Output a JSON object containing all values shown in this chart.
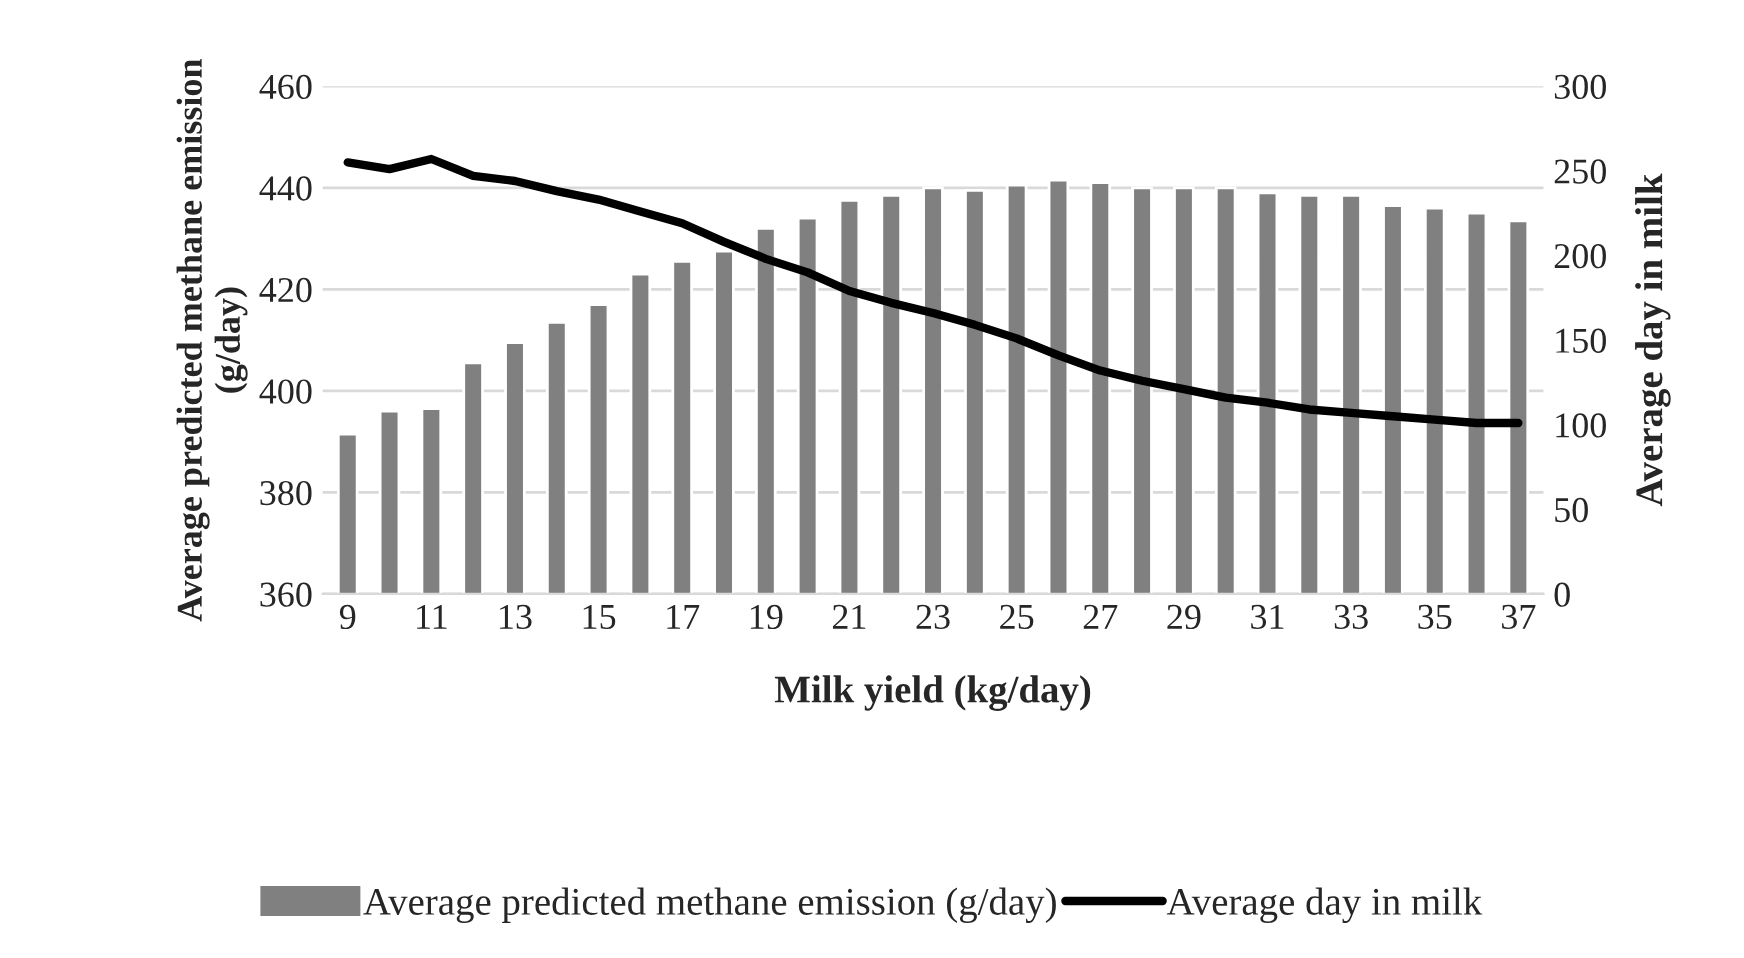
{
  "chart_data": {
    "type": "bar",
    "categories": [
      "9",
      null,
      "11",
      null,
      "13",
      null,
      "15",
      null,
      "17",
      null,
      "19",
      null,
      "21",
      null,
      "23",
      null,
      "25",
      null,
      "27",
      null,
      "29",
      null,
      "31",
      null,
      "33",
      null,
      "35",
      null,
      "37"
    ],
    "series": [
      {
        "name": "Average predicted methane emission (g/day)",
        "color": "#808080",
        "values": [
          391.5,
          396,
          396.5,
          405.5,
          409.5,
          413.5,
          417,
          423,
          425.5,
          427.5,
          432,
          434,
          437.5,
          438.5,
          440,
          439.5,
          440.5,
          441.5,
          441,
          440,
          440,
          440,
          439,
          438.5,
          438.5,
          436.5,
          436,
          435,
          433.5
        ]
      },
      {
        "name": "Average day in milk",
        "type": "line",
        "axis": "y2",
        "color": "#000000",
        "values": [
          255,
          251,
          257,
          247,
          244,
          238,
          233,
          226,
          219,
          208,
          198,
          190,
          179,
          172,
          166,
          159,
          151,
          141,
          132,
          126,
          121,
          116,
          113,
          109,
          107,
          105,
          103,
          101,
          101
        ]
      }
    ],
    "xlabel": "Milk yield (kg/day)",
    "ylabel": "Average predicted methane emission (g/day)",
    "y2label": "Average day in milk",
    "ylim": [
      360,
      460
    ],
    "yticks": [
      360,
      380,
      400,
      420,
      440,
      460
    ],
    "y2lim": [
      0,
      300
    ],
    "y2ticks": [
      0,
      50,
      100,
      150,
      200,
      250,
      300
    ],
    "grid": "y",
    "legend": "bottom",
    "line_style": "solid"
  }
}
